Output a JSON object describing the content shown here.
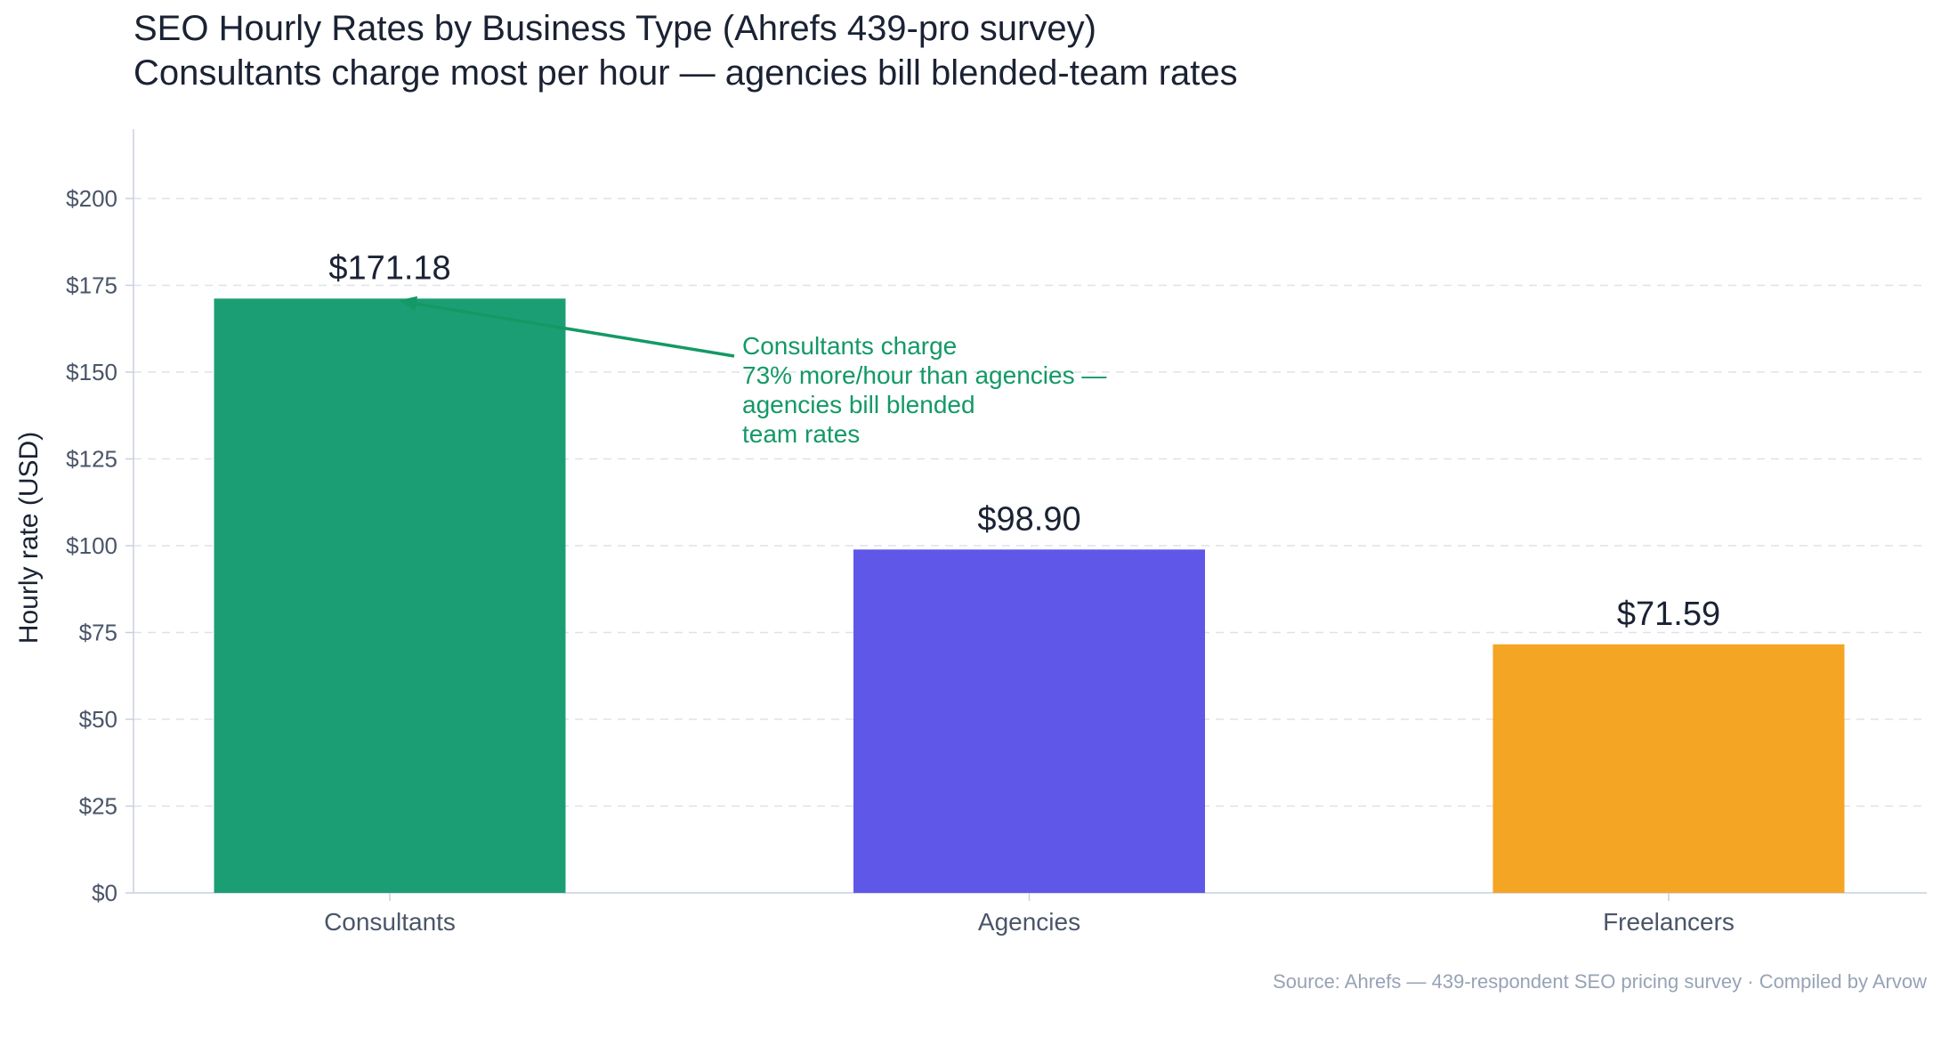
{
  "colors": {
    "consultants": "#1b9e74",
    "agencies": "#5f57e8",
    "freelancers": "#f4a523",
    "annotation": "#139966",
    "grid": "#dde2ea",
    "axis": "#c9cfe0",
    "tick_text": "#4a5568",
    "title_text": "#1a2233"
  },
  "footer": {
    "source": "Source: Ahrefs — 439-respondent SEO pricing survey · Compiled by Arvow"
  },
  "chart_data": {
    "type": "bar",
    "title": "SEO Hourly Rates by Business Type (Ahrefs 439-pro survey)",
    "subtitle": "Consultants charge most per hour — agencies bill blended-team rates",
    "xlabel": "",
    "ylabel": "Hourly rate (USD)",
    "categories": [
      "Consultants",
      "Agencies",
      "Freelancers"
    ],
    "values": [
      171.18,
      98.9,
      71.59
    ],
    "value_labels": [
      "$171.18",
      "$98.90",
      "$71.59"
    ],
    "bar_colors": [
      "#1b9e74",
      "#5f57e8",
      "#f4a523"
    ],
    "ylim": [
      0,
      220
    ],
    "yticks": [
      0,
      25,
      50,
      75,
      100,
      125,
      150,
      175,
      200
    ],
    "ytick_labels": [
      "$0",
      "$25",
      "$50",
      "$75",
      "$100",
      "$125",
      "$150",
      "$175",
      "$200"
    ],
    "grid": true,
    "legend": "none",
    "annotation": {
      "target_category": "Consultants",
      "lines": [
        "Consultants charge",
        "73% more/hour than agencies —",
        "agencies bill blended",
        "team rates"
      ]
    }
  }
}
